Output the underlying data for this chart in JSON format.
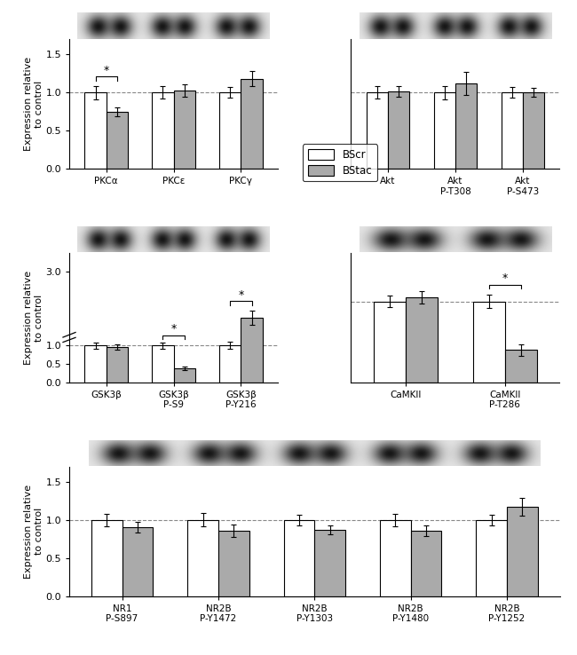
{
  "panel1_left": {
    "categories": [
      "PKCα",
      "PKCε",
      "PKCγ"
    ],
    "bscr": [
      1.0,
      1.0,
      1.0
    ],
    "bstac": [
      0.75,
      1.03,
      1.18
    ],
    "bscr_err": [
      0.09,
      0.08,
      0.07
    ],
    "bstac_err": [
      0.06,
      0.08,
      0.1
    ],
    "ylim": [
      0,
      1.7
    ],
    "yticks": [
      0.0,
      0.5,
      1.0,
      1.5
    ],
    "ytick_labels": [
      "0.0",
      "0.5",
      "1.0",
      "1.5"
    ],
    "ylabel": "Expression relative\nto control",
    "sig_groups": [
      0
    ],
    "show_yticks": true
  },
  "panel1_right": {
    "categories": [
      "Akt",
      "Akt\nP-T308",
      "Akt\nP-S473"
    ],
    "bscr": [
      1.0,
      1.0,
      1.0
    ],
    "bstac": [
      1.01,
      1.12,
      1.0
    ],
    "bscr_err": [
      0.08,
      0.09,
      0.07
    ],
    "bstac_err": [
      0.07,
      0.15,
      0.06
    ],
    "ylim": [
      0,
      1.7
    ],
    "yticks": [
      0.0,
      0.5,
      1.0,
      1.5
    ],
    "ytick_labels": [
      "0.0",
      "0.5",
      "1.0",
      "1.5"
    ],
    "ylabel": "",
    "sig_groups": [],
    "show_yticks": false
  },
  "panel2_left": {
    "categories": [
      "GSK3β",
      "GSK3β\nP-S9",
      "GSK3β\nP-Y216"
    ],
    "bscr": [
      1.0,
      1.0,
      1.0
    ],
    "bstac": [
      0.95,
      0.38,
      1.75
    ],
    "bscr_err": [
      0.08,
      0.08,
      0.1
    ],
    "bstac_err": [
      0.07,
      0.05,
      0.2
    ],
    "ylim": [
      0,
      3.5
    ],
    "yticks": [
      0.0,
      0.5,
      1.0,
      3.0
    ],
    "ytick_labels": [
      "0.0",
      "0.5",
      "1.0",
      "3.0"
    ],
    "ylabel": "Expression relative\nto control",
    "sig_groups": [
      1,
      2
    ],
    "show_yticks": true,
    "broken_axis": true
  },
  "panel2_right": {
    "categories": [
      "CaMKII",
      "CaMKII\nP-T286"
    ],
    "bscr": [
      1.0,
      1.0
    ],
    "bstac": [
      1.05,
      0.4
    ],
    "bscr_err": [
      0.07,
      0.08
    ],
    "bstac_err": [
      0.08,
      0.07
    ],
    "ylim": [
      0,
      1.6
    ],
    "yticks": [
      0.0,
      0.5,
      1.0,
      1.5
    ],
    "ytick_labels": [
      "0.0",
      "0.5",
      "1.0",
      "1.5"
    ],
    "ylabel": "",
    "sig_groups": [
      1
    ],
    "show_yticks": false
  },
  "panel3": {
    "categories": [
      "NR1\nP-S897",
      "NR2B\nP-Y1472",
      "NR2B\nP-Y1303",
      "NR2B\nP-Y1480",
      "NR2B\nP-Y1252"
    ],
    "bscr": [
      1.0,
      1.0,
      1.0,
      1.0,
      1.0
    ],
    "bstac": [
      0.9,
      0.86,
      0.87,
      0.86,
      1.17
    ],
    "bscr_err": [
      0.08,
      0.09,
      0.07,
      0.08,
      0.07
    ],
    "bstac_err": [
      0.07,
      0.08,
      0.06,
      0.07,
      0.12
    ],
    "ylim": [
      0,
      1.7
    ],
    "yticks": [
      0.0,
      0.5,
      1.0,
      1.5
    ],
    "ytick_labels": [
      "0.0",
      "0.5",
      "1.0",
      "1.5"
    ],
    "ylabel": "Expression relative\nto control",
    "sig_groups": [],
    "show_yticks": true
  },
  "bar_width": 0.32,
  "bscr_color": "#ffffff",
  "bstac_color": "#aaaaaa",
  "edge_color": "#000000",
  "dash_color": "#888888",
  "legend_labels": [
    "BScr",
    "BStac"
  ]
}
